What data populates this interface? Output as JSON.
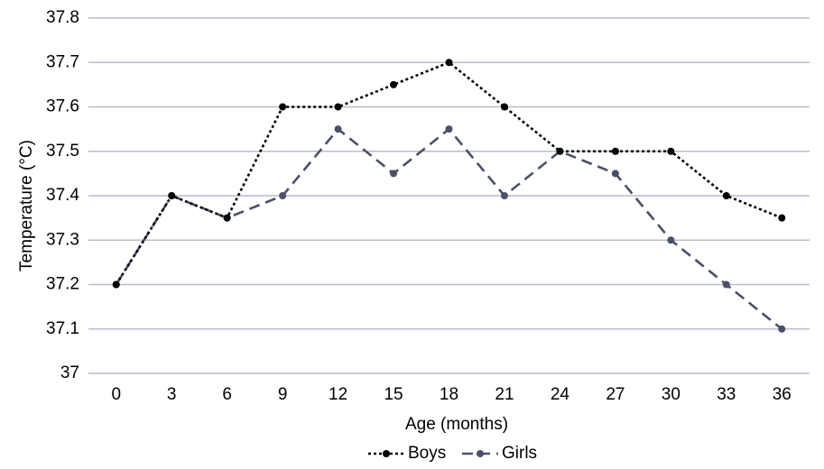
{
  "chart_data": {
    "type": "line",
    "title": "",
    "xlabel": "Age (months)",
    "ylabel": "Temperature (°C)",
    "x": [
      0,
      3,
      6,
      9,
      12,
      15,
      18,
      21,
      24,
      27,
      30,
      33,
      36
    ],
    "x_tick_labels": [
      "0",
      "3",
      "6",
      "9",
      "12",
      "15",
      "18",
      "21",
      "24",
      "27",
      "30",
      "33",
      "36"
    ],
    "ylim": [
      37,
      37.8
    ],
    "y_ticks": [
      37,
      37.1,
      37.2,
      37.3,
      37.4,
      37.5,
      37.6,
      37.7,
      37.8
    ],
    "y_tick_labels": [
      "37",
      "37.1",
      "37.2",
      "37.3",
      "37.4",
      "37.5",
      "37.6",
      "37.7",
      "37.8"
    ],
    "grid": "horizontal",
    "legend_position": "bottom",
    "series": [
      {
        "name": "Boys",
        "color": "#000000",
        "line_style": "dotted",
        "marker": "circle",
        "values": [
          37.2,
          37.4,
          37.35,
          37.6,
          37.6,
          37.65,
          37.7,
          37.6,
          37.5,
          37.5,
          37.5,
          37.4,
          37.35
        ]
      },
      {
        "name": "Girls",
        "color": "#4a5068",
        "line_style": "dashed",
        "marker": "circle",
        "values": [
          37.2,
          37.4,
          37.35,
          37.4,
          37.55,
          37.45,
          37.55,
          37.4,
          37.5,
          37.45,
          37.3,
          37.2,
          37.1
        ]
      }
    ],
    "colors": {
      "grid": "#bcbccc",
      "axis": "#bcbccc"
    }
  }
}
